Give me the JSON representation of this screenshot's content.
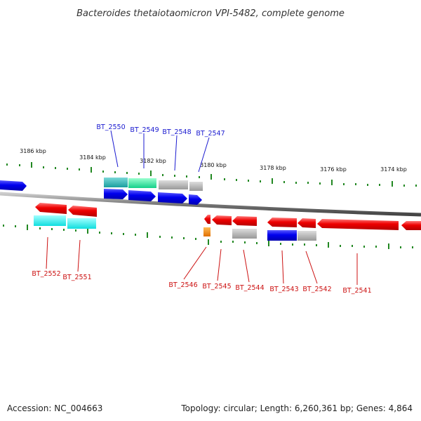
{
  "title": "Bacteroides thetaiotaomicron VPI-5482, complete genome",
  "footer": {
    "accession": "Accession: NC_004663",
    "summary": "Topology: circular; Length: 6,260,361 bp; Genes: 4,864"
  },
  "scale_labels": [
    "3186 kbp",
    "3184 kbp",
    "3182 kbp",
    "3180 kbp",
    "3178 kbp",
    "3176 kbp",
    "3174 kbp"
  ],
  "gene_labels": {
    "top": [
      "BT_2550",
      "BT_2549",
      "BT_2548",
      "BT_2547"
    ],
    "bottom": [
      "BT_2552",
      "BT_2551",
      "BT_2546",
      "BT_2545",
      "BT_2544",
      "BT_2543",
      "BT_2542",
      "BT_2541"
    ]
  },
  "colors": {
    "forward_cds": "#0000ee",
    "reverse_cds": "#ee0000",
    "cog_teal": "#22b8b8",
    "cog_green": "#22e8a0",
    "cog_gray": "#aaaaaa",
    "cog_cyan": "#22f0f0",
    "cog_orange": "#ff8800",
    "backbone": "#888888",
    "tick": "#228822",
    "label_forward": "#1a1ad0",
    "label_reverse": "#cc1111"
  }
}
